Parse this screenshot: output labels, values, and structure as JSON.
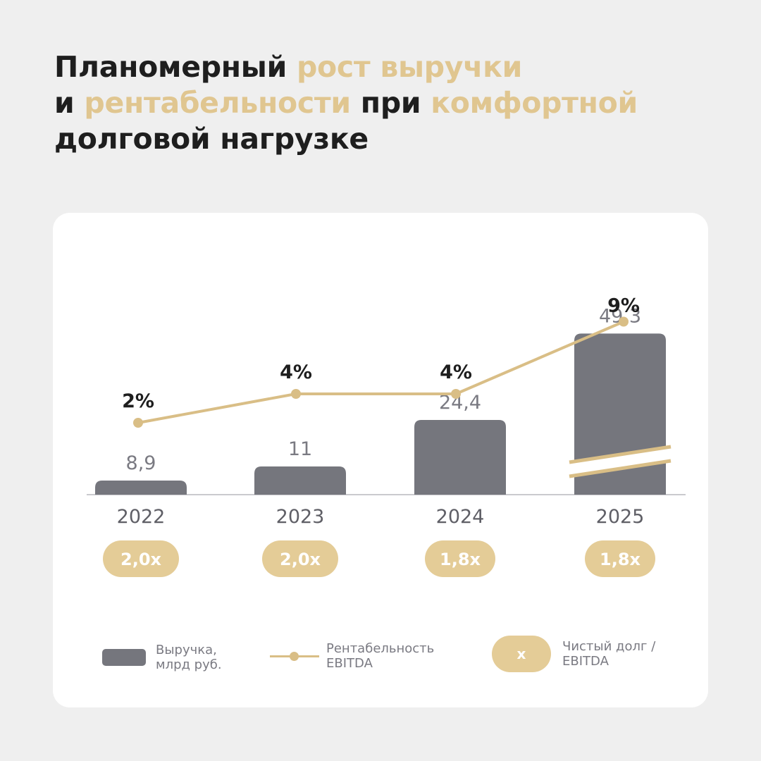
{
  "headline": {
    "parts": [
      {
        "text": "Планомерный ",
        "accent": false
      },
      {
        "text": "рост выручки",
        "accent": true
      },
      {
        "text": "\n",
        "accent": false
      },
      {
        "text": "и ",
        "accent": false
      },
      {
        "text": "рентабельности",
        "accent": true
      },
      {
        "text": " при ",
        "accent": false
      },
      {
        "text": "комфортной",
        "accent": true
      },
      {
        "text": "\n",
        "accent": false
      },
      {
        "text": "долговой нагрузке",
        "accent": false
      }
    ]
  },
  "colors": {
    "background": "#efefef",
    "card": "#ffffff",
    "bar": "#75767d",
    "line": "#d9be86",
    "pill": "#e4cc97",
    "accent_text": "#e0c690",
    "dark_text": "#1e1e1e",
    "grey_text": "#7a7a82"
  },
  "chart_data": {
    "type": "bar",
    "categories": [
      "2022",
      "2023",
      "2024",
      "2025"
    ],
    "series": [
      {
        "name": "Выручка, млрд руб.",
        "type": "bar",
        "values": [
          8.9,
          11,
          24.4,
          49.3
        ],
        "labels": [
          "8,9",
          "11",
          "24,4",
          "49,3"
        ],
        "axis_break_on": [
          "2025"
        ]
      },
      {
        "name": "Рентабельность EBITDA",
        "type": "line",
        "values": [
          2,
          4,
          4,
          9
        ],
        "labels": [
          "2%",
          "4%",
          "4%",
          "9%"
        ]
      },
      {
        "name": "Чистый долг / EBITDA",
        "type": "badge",
        "values": [
          2.0,
          2.0,
          1.8,
          1.8
        ],
        "labels": [
          "2,0x",
          "2,0x",
          "1,8x",
          "1,8x"
        ]
      }
    ],
    "grid": false,
    "legend_position": "bottom"
  },
  "legend": {
    "revenue": [
      "Выручка,",
      "млрд руб."
    ],
    "margin": [
      "Рентабельность",
      "EBITDA"
    ],
    "debt_symbol": "х",
    "debt": [
      "Чистый долг /",
      "EBITDA"
    ]
  }
}
